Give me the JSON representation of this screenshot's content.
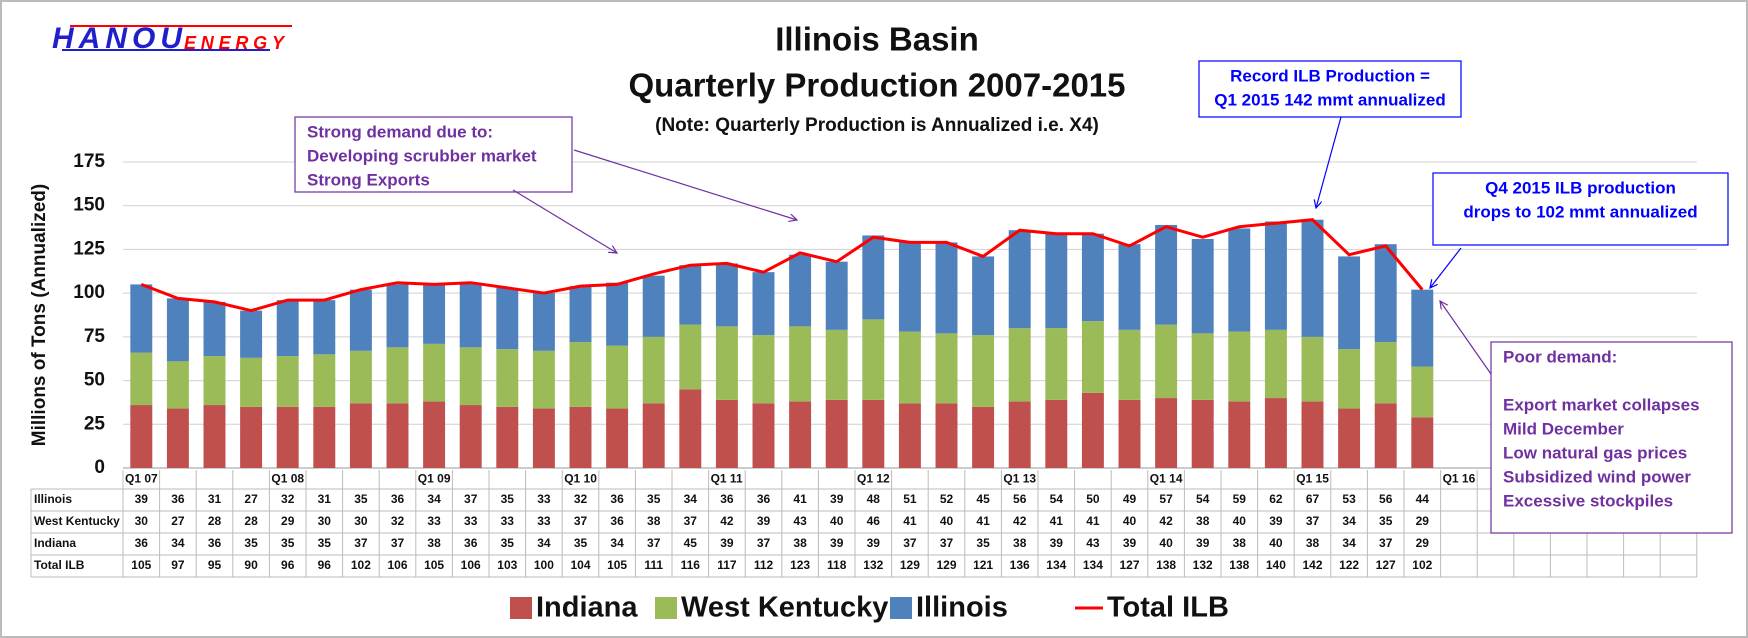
{
  "chart_data": {
    "type": "bar",
    "stacked": true,
    "logo": [
      "HANOU",
      "ENERGY"
    ],
    "title": "Illinois Basin",
    "subtitle": "Quarterly Production 2007-2015",
    "note": "(Note: Quarterly Production is Annualized  i.e. X4)",
    "ylabel": "Millions of Tons (Annualized)",
    "ylim": [
      0,
      175
    ],
    "yticks": [
      0,
      25,
      50,
      75,
      100,
      125,
      150,
      175
    ],
    "grid": true,
    "categories": [
      "Q1 07",
      null,
      null,
      null,
      "Q1 08",
      null,
      null,
      null,
      "Q1 09",
      null,
      null,
      null,
      "Q1 10",
      null,
      null,
      null,
      "Q1 11",
      null,
      null,
      null,
      "Q1 12",
      null,
      null,
      null,
      "Q1 13",
      null,
      null,
      null,
      "Q1 14",
      null,
      null,
      null,
      "Q1 15",
      null,
      null,
      null,
      "Q1 16"
    ],
    "series": [
      {
        "name": "Indiana",
        "color": "#c0504d",
        "values": [
          36,
          34,
          36,
          35,
          35,
          35,
          37,
          37,
          38,
          36,
          35,
          34,
          35,
          34,
          37,
          45,
          39,
          37,
          38,
          39,
          39,
          37,
          37,
          35,
          38,
          39,
          43,
          39,
          40,
          39,
          38,
          40,
          38,
          34,
          37,
          29,
          null
        ]
      },
      {
        "name": "West Kentucky",
        "color": "#9bbb59",
        "values": [
          30,
          27,
          28,
          28,
          29,
          30,
          30,
          32,
          33,
          33,
          33,
          33,
          37,
          36,
          38,
          37,
          42,
          39,
          43,
          40,
          46,
          41,
          40,
          41,
          42,
          41,
          41,
          40,
          42,
          38,
          40,
          39,
          37,
          34,
          35,
          29,
          null
        ]
      },
      {
        "name": "Illinois",
        "color": "#4f81bd",
        "values": [
          39,
          36,
          31,
          27,
          32,
          31,
          35,
          36,
          34,
          37,
          35,
          33,
          32,
          36,
          35,
          34,
          36,
          36,
          41,
          39,
          48,
          51,
          52,
          45,
          56,
          54,
          50,
          49,
          57,
          54,
          59,
          62,
          67,
          53,
          56,
          44,
          null
        ]
      },
      {
        "name": "Total ILB",
        "type": "line",
        "color": "#ff0000",
        "values": [
          105,
          97,
          95,
          90,
          96,
          96,
          102,
          106,
          105,
          106,
          103,
          100,
          104,
          105,
          111,
          116,
          117,
          112,
          123,
          118,
          132,
          129,
          129,
          121,
          136,
          134,
          134,
          127,
          138,
          132,
          138,
          140,
          142,
          122,
          127,
          102,
          null
        ]
      }
    ],
    "annotations": [
      {
        "color": "#7030a0",
        "lines": [
          "Strong demand due to:",
          "Developing scrubber market",
          "Strong Exports"
        ]
      },
      {
        "color": "#0000ff",
        "lines": [
          "Record ILB Production =",
          "Q1 2015 142 mmt annualized"
        ]
      },
      {
        "color": "#0000ff",
        "lines": [
          "Q4 2015 ILB production",
          "drops to 102 mmt annualized"
        ]
      },
      {
        "color": "#7030a0",
        "lines": [
          "Poor demand:",
          "Export market collapses",
          "Mild December",
          "Low natural gas prices",
          "Subsidized wind power",
          "Excessive stockpiles"
        ]
      }
    ]
  }
}
